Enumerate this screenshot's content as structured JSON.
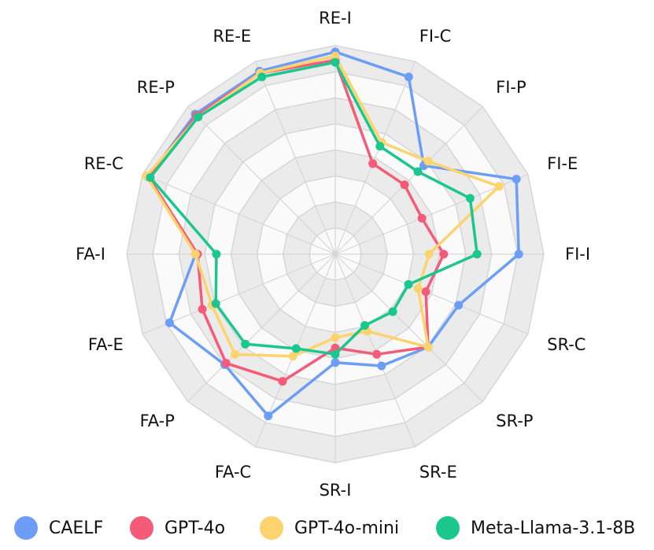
{
  "chart_data": {
    "type": "radar",
    "axes": [
      "RE-I",
      "FI-C",
      "FI-P",
      "FI-E",
      "FI-I",
      "SR-C",
      "SR-P",
      "SR-E",
      "SR-I",
      "FA-C",
      "FA-P",
      "FA-E",
      "FA-I",
      "RE-C",
      "RE-P",
      "RE-E"
    ],
    "range": [
      0,
      1
    ],
    "rings": 8,
    "series": [
      {
        "name": "CAELF",
        "color": "#6C9EF8",
        "values": [
          0.97,
          0.92,
          0.6,
          0.94,
          0.88,
          0.64,
          0.63,
          0.58,
          0.52,
          0.84,
          0.75,
          0.86,
          0.67,
          0.97,
          0.95,
          0.95
        ]
      },
      {
        "name": "GPT-4o",
        "color": "#F45B78",
        "values": [
          0.93,
          0.47,
          0.47,
          0.45,
          0.52,
          0.47,
          0.63,
          0.52,
          0.45,
          0.66,
          0.74,
          0.69,
          0.66,
          0.97,
          0.94,
          0.94
        ]
      },
      {
        "name": "GPT-4o-mini",
        "color": "#FDD36E",
        "values": [
          0.95,
          0.58,
          0.63,
          0.85,
          0.45,
          0.43,
          0.63,
          0.4,
          0.4,
          0.53,
          0.68,
          0.64,
          0.67,
          0.98,
          0.93,
          0.94
        ]
      },
      {
        "name": "Meta-Llama-3.1-8B",
        "color": "#1CC78E",
        "values": [
          0.92,
          0.56,
          0.56,
          0.7,
          0.68,
          0.38,
          0.39,
          0.37,
          0.48,
          0.49,
          0.61,
          0.62,
          0.57,
          0.96,
          0.93,
          0.92
        ]
      }
    ],
    "grid": true,
    "legend_position": "bottom"
  }
}
